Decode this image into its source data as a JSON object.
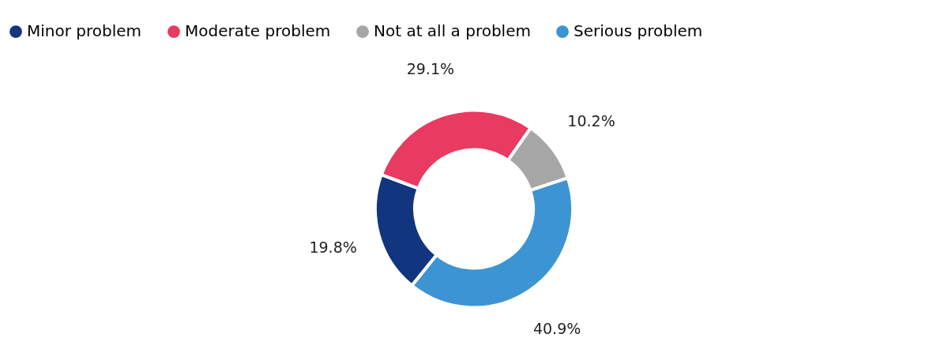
{
  "chart_data": {
    "type": "donut",
    "categories": [
      "Minor problem",
      "Moderate problem",
      "Not at all a problem",
      "Serious problem"
    ],
    "values": [
      19.8,
      29.1,
      10.2,
      40.9
    ],
    "colors": [
      "#12357f",
      "#e93a62",
      "#a6a6a6",
      "#3d94d3"
    ],
    "value_labels": [
      "19.8%",
      "29.1%",
      "10.2%",
      "40.9%"
    ],
    "legend": "top"
  }
}
